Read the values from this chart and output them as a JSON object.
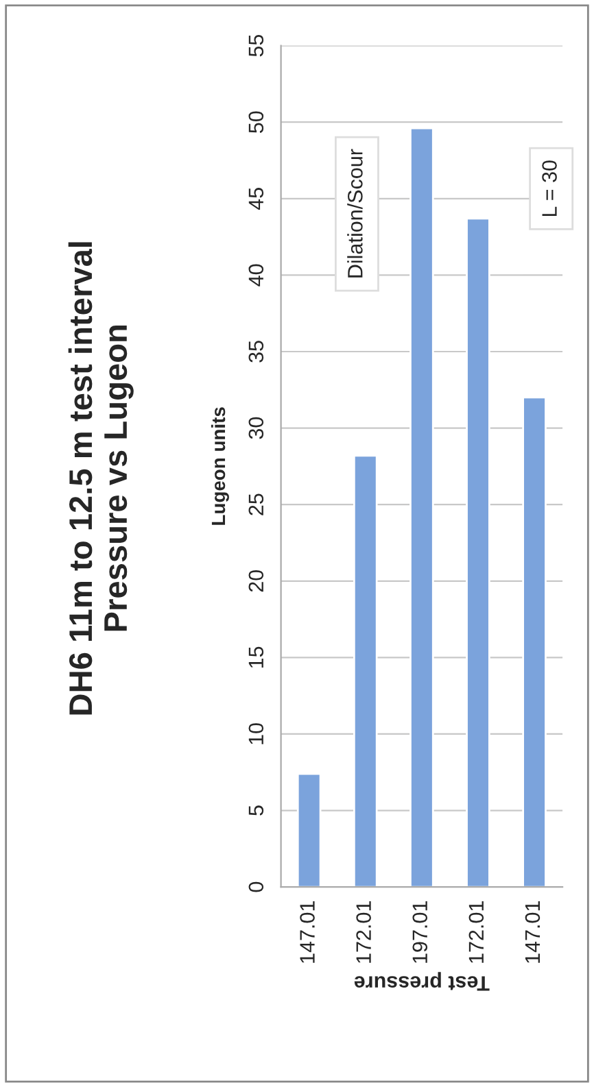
{
  "chart_data": {
    "type": "bar",
    "title": "DH6 11m to 12.5 m test interval\nPressure vs Lugeon",
    "xlabel": "Test pressure",
    "ylabel": "Lugeon units",
    "categories": [
      "147.01",
      "172.01",
      "197.01",
      "172.01",
      "147.01"
    ],
    "values": [
      7.4,
      28.2,
      49.6,
      43.7,
      32.0
    ],
    "color": "#7ba3dc",
    "ylim": [
      0,
      55
    ],
    "yticks": [
      0,
      5,
      10,
      15,
      20,
      25,
      30,
      35,
      40,
      45,
      50,
      55
    ],
    "grid": "y",
    "annotations": [
      "Dilation/Scour",
      "L = 30"
    ]
  }
}
